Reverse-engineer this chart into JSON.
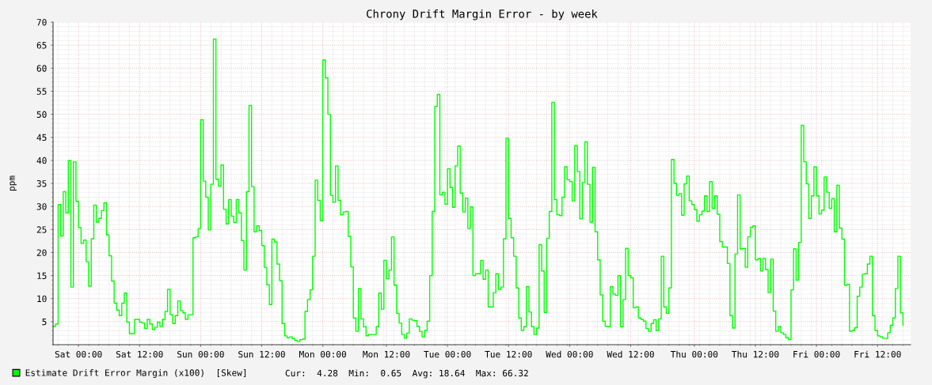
{
  "chart_data": {
    "type": "step",
    "title": "Chrony Drift Margin Error - by week",
    "ylabel": "ppm",
    "ylim": [
      0,
      70
    ],
    "yticks": [
      5,
      10,
      15,
      20,
      25,
      30,
      35,
      40,
      45,
      50,
      55,
      60,
      65,
      70
    ],
    "grid": true,
    "legend": "bottom left",
    "annotations": [
      "Cur:  4.28  Min:  0.65  Avg: 18.64  Max: 66.32"
    ],
    "categories": [
      null,
      null,
      null,
      null,
      null,
      null,
      null,
      null,
      null,
      null,
      "Sat 00:00",
      null,
      null,
      null,
      null,
      null,
      null,
      null,
      null,
      null,
      null,
      null,
      null,
      null,
      null,
      null,
      null,
      null,
      null,
      null,
      null,
      null,
      null,
      null,
      "Sat 12:00",
      null,
      null,
      null,
      null,
      null,
      null,
      null,
      null,
      null,
      null,
      null,
      null,
      null,
      null,
      null,
      null,
      null,
      null,
      null,
      null,
      null,
      null,
      null,
      "Sun 00:00",
      null,
      null,
      null,
      null,
      null,
      null,
      null,
      null,
      null,
      null,
      null,
      null,
      null,
      null,
      null,
      null,
      null,
      null,
      null,
      null,
      null,
      null,
      null,
      "Sun 12:00",
      null,
      null,
      null,
      null,
      null,
      null,
      null,
      null,
      null,
      null,
      null,
      null,
      null,
      null,
      null,
      null,
      null,
      null,
      null,
      null,
      null,
      null,
      null,
      "Mon 00:00",
      null,
      null,
      null,
      null,
      null,
      null,
      null,
      null,
      null,
      null,
      null,
      null,
      null,
      null,
      null,
      null,
      null,
      null,
      null,
      null,
      null,
      null,
      null,
      null,
      "Mon 12:00",
      null,
      null,
      null,
      null,
      null,
      null,
      null,
      null,
      null,
      null,
      null,
      null,
      null,
      null,
      null,
      null,
      null,
      null,
      null,
      null,
      null,
      null,
      null,
      "Tue 00:00",
      null,
      null,
      null,
      null,
      null,
      null,
      null,
      null,
      null,
      null,
      null,
      null,
      null,
      null,
      null,
      null,
      null,
      null,
      null,
      null,
      null,
      null,
      null,
      "Tue 12:00",
      null,
      null,
      null,
      null,
      null,
      null,
      null,
      null,
      null,
      null,
      null,
      null,
      null,
      null,
      null,
      null,
      null,
      null,
      null,
      null,
      null,
      null,
      null,
      "Wed 00:00",
      null,
      null,
      null,
      null,
      null,
      null,
      null,
      null,
      null,
      null,
      null,
      null,
      null,
      null,
      null,
      null,
      null,
      null,
      null,
      null,
      null,
      null,
      null,
      "Wed 12:00",
      null,
      null,
      null,
      null,
      null,
      null,
      null,
      null,
      null,
      null,
      null,
      null,
      null,
      null,
      null,
      null,
      null,
      null,
      null,
      null,
      null,
      null,
      null,
      null,
      "Thu 00:00",
      null,
      null,
      null,
      null,
      null,
      null,
      null,
      null,
      null,
      null,
      null,
      null,
      null,
      null,
      null,
      null,
      null,
      null,
      null,
      null,
      null,
      null,
      null,
      "Thu 12:00",
      null,
      null,
      null,
      null,
      null,
      null,
      null,
      null,
      null,
      null,
      null,
      null,
      null,
      null,
      null,
      null,
      null,
      null,
      null,
      null,
      null,
      null,
      null,
      "Fri 00:00",
      null,
      null,
      null,
      null,
      null,
      null,
      null,
      null,
      null,
      null,
      null,
      null,
      null,
      null,
      null,
      null,
      null,
      null,
      null,
      null,
      null,
      null,
      null,
      "Fri 12:00",
      null,
      null,
      null,
      null,
      null,
      null,
      null,
      null,
      null,
      null
    ],
    "series": [
      {
        "name": "Estimate Drift Error Margin (x100)  [Skew]",
        "color": "#00ff00",
        "values": [
          4.0,
          4.5,
          30.4,
          23.6,
          33.2,
          28.6,
          40.0,
          12.5,
          39.7,
          31.1,
          25.4,
          22.0,
          22.7,
          18.0,
          12.7,
          23.0,
          30.3,
          26.6,
          27.4,
          29.1,
          30.8,
          23.8,
          19.3,
          13.8,
          9.0,
          7.5,
          6.3,
          9.0,
          11.2,
          4.9,
          2.4,
          2.4,
          5.5,
          5.5,
          4.9,
          4.7,
          3.5,
          5.5,
          4.5,
          3.3,
          3.8,
          4.9,
          4.0,
          5.5,
          7.2,
          12.0,
          6.5,
          4.6,
          6.3,
          9.5,
          7.4,
          6.9,
          5.5,
          6.5,
          6.5,
          23.2,
          23.4,
          25.2,
          48.8,
          35.5,
          32.0,
          24.9,
          34.8,
          66.3,
          35.9,
          34.4,
          39.0,
          29.4,
          26.2,
          31.5,
          27.9,
          26.5,
          31.5,
          28.6,
          22.6,
          16.2,
          33.2,
          51.9,
          34.3,
          24.5,
          25.8,
          24.8,
          21.5,
          16.8,
          13.0,
          8.7,
          22.9,
          22.3,
          17.5,
          13.9,
          4.6,
          1.9,
          1.5,
          1.7,
          1.3,
          0.9,
          0.7,
          1.1,
          1.2,
          7.2,
          9.8,
          11.9,
          19.2,
          35.7,
          31.3,
          26.9,
          61.8,
          57.9,
          50.0,
          32.4,
          30.9,
          38.8,
          31.3,
          28.2,
          28.8,
          28.9,
          23.5,
          16.9,
          5.8,
          2.9,
          12.2,
          5.6,
          3.9,
          1.9,
          2.2,
          2.2,
          2.2,
          3.9,
          11.2,
          7.7,
          18.3,
          14.3,
          16.2,
          23.4,
          12.9,
          6.8,
          4.7,
          2.2,
          1.4,
          2.5,
          5.6,
          5.3,
          5.2,
          4.0,
          2.9,
          1.7,
          3.1,
          5.1,
          15.0,
          28.9,
          51.7,
          54.3,
          32.5,
          33.1,
          30.5,
          38.2,
          34.1,
          29.8,
          38.8,
          43.1,
          32.9,
          28.8,
          31.8,
          25.2,
          29.9,
          15.0,
          15.4,
          15.4,
          18.3,
          14.2,
          16.2,
          8.2,
          8.2,
          11.3,
          15.4,
          12.0,
          12.5,
          23.0,
          44.8,
          27.4,
          23.2,
          19.2,
          12.3,
          5.8,
          3.1,
          3.9,
          12.6,
          7.1,
          3.9,
          2.2,
          3.6,
          21.7,
          16.0,
          7.0,
          23.1,
          28.9,
          52.6,
          31.5,
          28.2,
          28.0,
          32.0,
          38.6,
          35.8,
          35.4,
          31.2,
          43.2,
          37.6,
          27.3,
          35.2,
          44.0,
          34.8,
          26.6,
          38.5,
          24.5,
          18.4,
          10.8,
          5.1,
          4.0,
          3.9,
          12.6,
          11.0,
          10.7,
          15.0,
          3.9,
          9.8,
          20.9,
          15.0,
          14.5,
          8.0,
          8.2,
          5.8,
          5.5,
          5.1,
          3.5,
          2.9,
          4.6,
          5.4,
          3.1,
          5.6,
          19.2,
          8.2,
          6.8,
          12.3,
          40.2,
          35.0,
          32.4,
          32.8,
          28.1,
          34.9,
          36.6,
          31.2,
          30.4,
          29.3,
          26.8,
          28.2,
          29.0,
          32.3,
          28.9,
          35.4,
          29.6,
          32.3,
          28.3,
          22.4,
          21.2,
          21.2,
          17.6,
          6.3,
          3.6,
          19.7,
          32.5,
          20.8,
          20.9,
          16.8,
          23.4,
          25.5,
          25.8,
          18.4,
          18.7,
          16.0,
          18.7,
          16.3,
          11.3,
          18.6,
          7.3,
          2.9,
          3.9,
          2.6,
          2.2,
          1.5,
          1.1,
          11.9,
          20.8,
          14.0,
          22.2,
          47.6,
          39.7,
          34.9,
          27.4,
          32.3,
          38.6,
          32.3,
          28.4,
          29.2,
          36.4,
          33.1,
          29.6,
          31.7,
          24.5,
          34.6,
          25.3,
          22.9,
          12.9,
          13.1,
          2.9,
          3.1,
          3.7,
          10.5,
          12.5,
          15.3,
          15.4,
          17.5,
          19.2,
          6.3,
          3.1,
          1.9,
          1.7,
          1.4,
          1.4,
          2.6,
          4.2,
          5.8,
          12.2,
          19.2,
          6.9,
          4.2
        ]
      }
    ]
  }
}
